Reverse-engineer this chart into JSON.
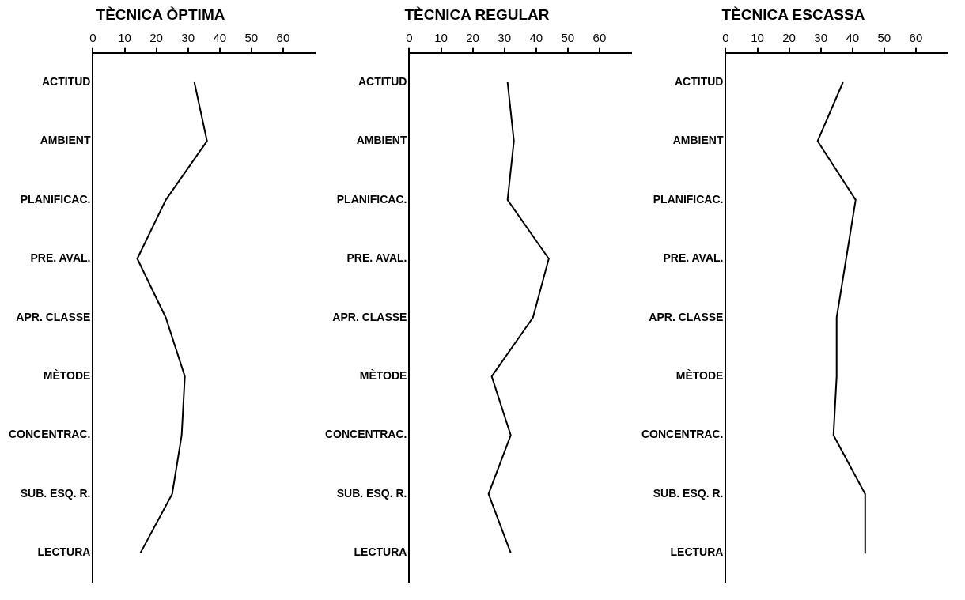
{
  "chart_data": [
    {
      "type": "line",
      "title": "TÈCNICA ÒPTIMA",
      "orientation": "horizontal",
      "categories": [
        "ACTITUD",
        "AMBIENT",
        "PLANIFICAC.",
        "PRE. AVAL.",
        "APR. CLASSE",
        "MÈTODE",
        "CONCENTRAC.",
        "SUB. ESQ. R.",
        "LECTURA"
      ],
      "values": [
        32,
        36,
        23,
        14,
        23,
        29,
        28,
        25,
        15
      ],
      "color": "#000000",
      "xlim": [
        0,
        70
      ],
      "xticks": [
        0,
        10,
        20,
        30,
        40,
        50,
        60
      ],
      "marker": "none",
      "grid": false
    },
    {
      "type": "line",
      "title": "TÈCNICA REGULAR",
      "orientation": "horizontal",
      "categories": [
        "ACTITUD",
        "AMBIENT",
        "PLANIFICAC.",
        "PRE. AVAL.",
        "APR. CLASSE",
        "MÈTODE",
        "CONCENTRAC.",
        "SUB. ESQ. R.",
        "LECTURA"
      ],
      "values": [
        31,
        33,
        31,
        44,
        39,
        26,
        32,
        25,
        32
      ],
      "color": "#000000",
      "xlim": [
        0,
        70
      ],
      "xticks": [
        0,
        10,
        20,
        30,
        40,
        50,
        60
      ],
      "marker": "none",
      "grid": false
    },
    {
      "type": "line",
      "title": "TÈCNICA ESCASSA",
      "orientation": "horizontal",
      "categories": [
        "ACTITUD",
        "AMBIENT",
        "PLANIFICAC.",
        "PRE. AVAL.",
        "APR. CLASSE",
        "MÈTODE",
        "CONCENTRAC.",
        "SUB. ESQ. R.",
        "LECTURA"
      ],
      "values": [
        37,
        29,
        41,
        38,
        35,
        35,
        34,
        44,
        44
      ],
      "color": "#000000",
      "xlim": [
        0,
        70
      ],
      "xticks": [
        0,
        10,
        20,
        30,
        40,
        50,
        60
      ],
      "marker": "none",
      "grid": false
    }
  ]
}
